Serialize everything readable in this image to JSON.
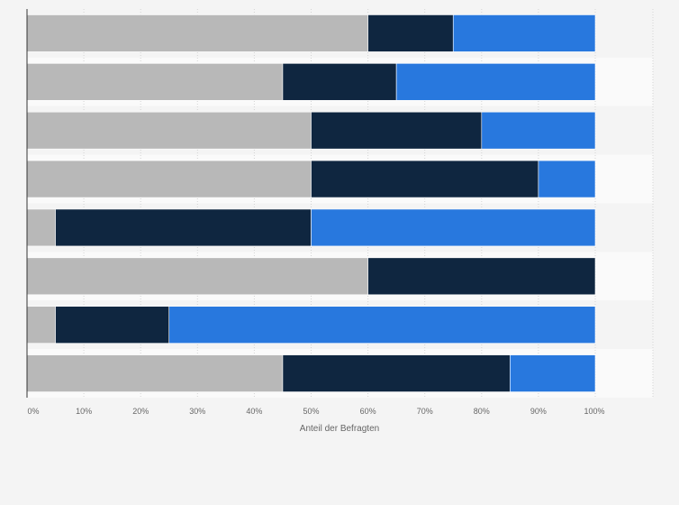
{
  "chart_data": {
    "type": "bar",
    "orientation": "horizontal",
    "stacked": true,
    "title": "",
    "xlabel": "Anteil der Befragten",
    "ylabel": "",
    "xlim": [
      0,
      100
    ],
    "x_unit": "%",
    "x_ticks": [
      "0%",
      "10%",
      "20%",
      "30%",
      "40%",
      "50%",
      "60%",
      "70%",
      "80%",
      "90%",
      "100%"
    ],
    "categories": [
      "",
      "",
      "",
      "",
      "",
      "",
      "",
      ""
    ],
    "series": [
      {
        "color": "#b8b8b8",
        "values": [
          60,
          45,
          50,
          50,
          5,
          60,
          5,
          45
        ]
      },
      {
        "color": "#0f2640",
        "values": [
          15,
          20,
          30,
          40,
          45,
          40,
          20,
          40
        ]
      },
      {
        "color": "#2878de",
        "values": [
          25,
          35,
          20,
          10,
          50,
          0,
          75,
          15
        ]
      }
    ],
    "grid": true,
    "legend": "none"
  }
}
